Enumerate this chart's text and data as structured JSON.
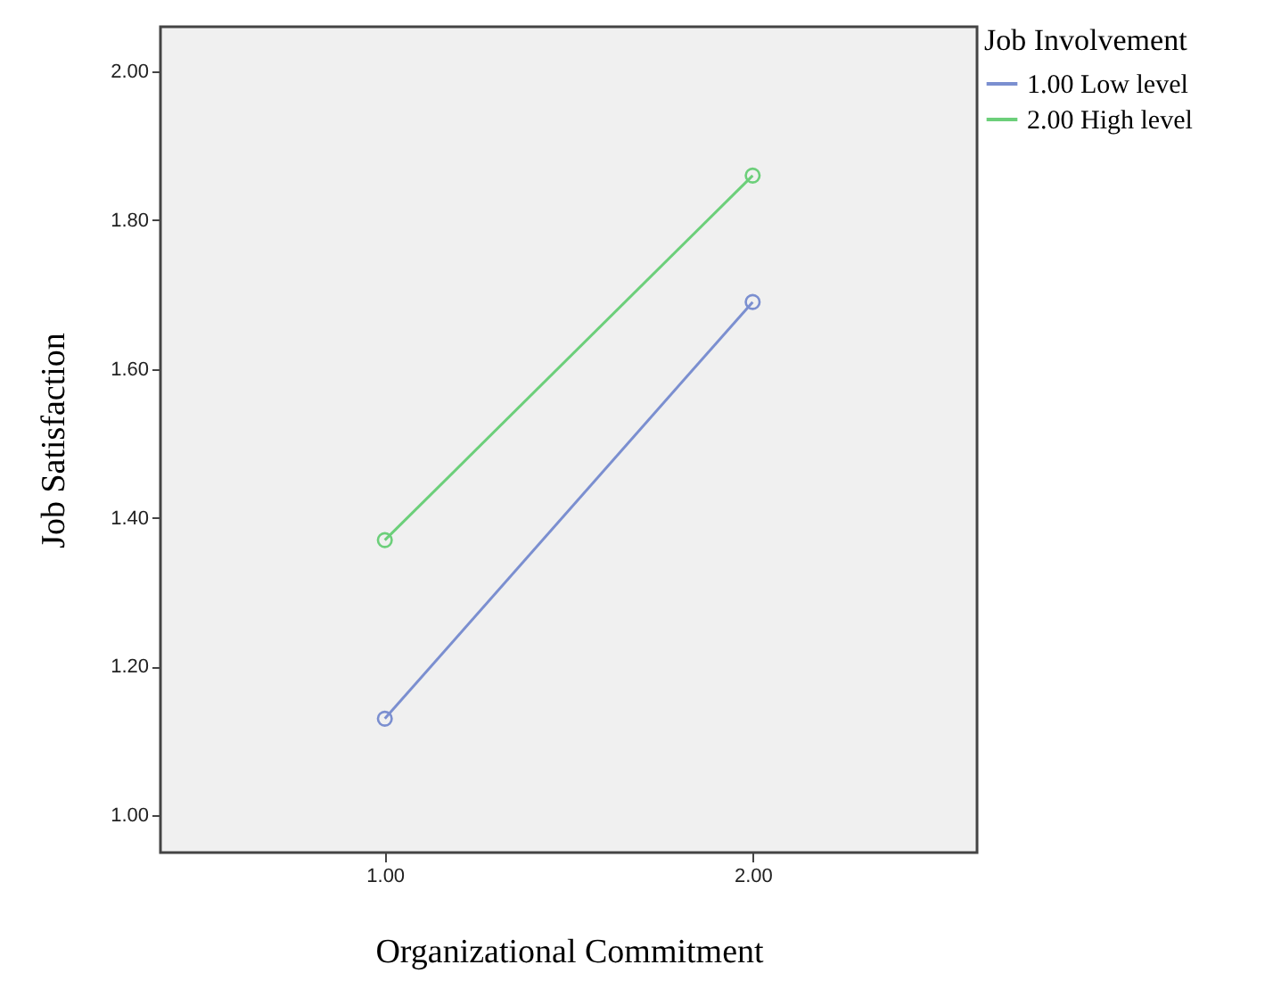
{
  "chart_data": {
    "type": "line",
    "xlabel": "Organizational Commitment",
    "ylabel": "Job Satisfaction",
    "legend_title": "Job Involvement",
    "x": [
      1,
      2
    ],
    "series": [
      {
        "name": "1.00 Low level",
        "color": "#7b8fd0",
        "values": [
          1.13,
          1.69
        ]
      },
      {
        "name": "2.00 High level",
        "color": "#6ccf7a",
        "values": [
          1.37,
          1.86
        ]
      }
    ],
    "xlim": [
      0.39,
      2.61
    ],
    "xticks": [
      {
        "value": 1,
        "label": "1.00"
      },
      {
        "value": 2,
        "label": "2.00"
      }
    ],
    "ylim": [
      0.95,
      2.06
    ],
    "yticks": [
      {
        "value": 1,
        "label": "1.00"
      },
      {
        "value": 1.2,
        "label": "1.20"
      },
      {
        "value": 1.4,
        "label": "1.40"
      },
      {
        "value": 1.6,
        "label": "1.60"
      },
      {
        "value": 1.8,
        "label": "1.80"
      },
      {
        "value": 2,
        "label": "2.00"
      }
    ],
    "grid": false,
    "legend": "top right",
    "marker": "circle",
    "line_style": "solid"
  }
}
